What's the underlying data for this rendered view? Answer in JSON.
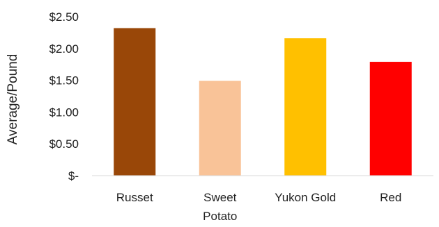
{
  "chart_data": {
    "type": "bar",
    "title": "",
    "xlabel": "",
    "ylabel": "Average/Pound",
    "categories": [
      "Russet",
      "Sweet Potato",
      "Yukon Gold",
      "Red"
    ],
    "values": [
      2.32,
      1.49,
      2.16,
      1.79
    ],
    "bar_colors": [
      "#994708",
      "#F9C398",
      "#FFC000",
      "#FF0000"
    ],
    "ylim": [
      0,
      2.5
    ],
    "y_ticks": [
      {
        "value": 0,
        "label": "$-"
      },
      {
        "value": 0.5,
        "label": "$0.50"
      },
      {
        "value": 1.0,
        "label": "$1.00"
      },
      {
        "value": 1.5,
        "label": "$1.50"
      },
      {
        "value": 2.0,
        "label": "$2.00"
      },
      {
        "value": 2.5,
        "label": "$2.50"
      }
    ],
    "grid": false,
    "legend": "none"
  }
}
